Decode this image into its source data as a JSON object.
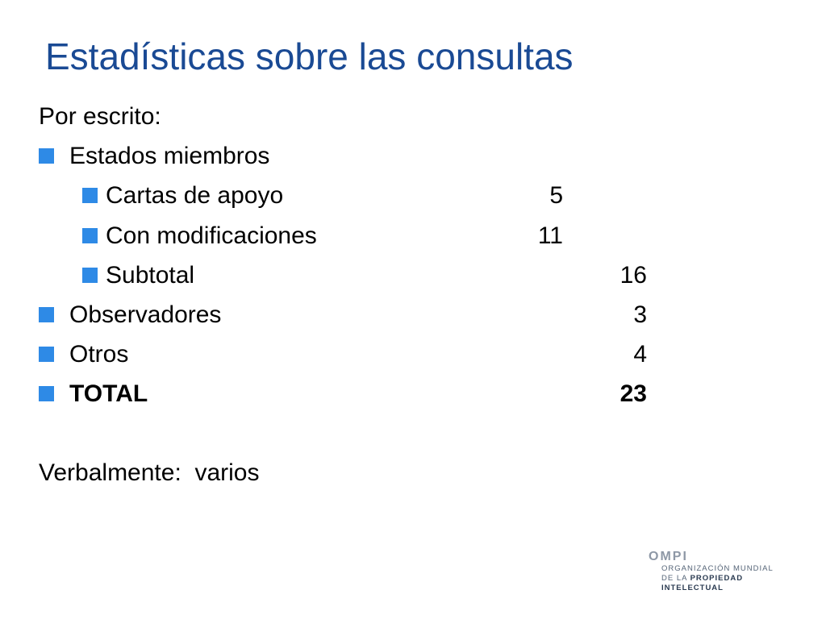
{
  "title": "Estadísticas sobre las consultas",
  "written_label": "Por escrito:",
  "items": {
    "member_states": {
      "label": "Estados miembros"
    },
    "support_letters": {
      "label": "Cartas de apoyo",
      "value": "5"
    },
    "with_modifications": {
      "label": "Con modificaciones",
      "value": "11"
    },
    "subtotal": {
      "label": "Subtotal",
      "value": "16"
    },
    "observers": {
      "label": "Observadores",
      "value": "3"
    },
    "others": {
      "label": "Otros",
      "value": "4"
    },
    "total": {
      "label": "TOTAL",
      "value": "23"
    }
  },
  "verbal": "Verbalmente:  varios",
  "logo": {
    "acronym": "OMPI",
    "line1": "ORGANIZACIÓN MUNDIAL",
    "line2_prefix": "DE LA ",
    "line2_bold": "PROPIEDAD",
    "line3": "INTELECTUAL"
  },
  "colors": {
    "title": "#1a4a94",
    "bullet": "#2e8ae6"
  }
}
